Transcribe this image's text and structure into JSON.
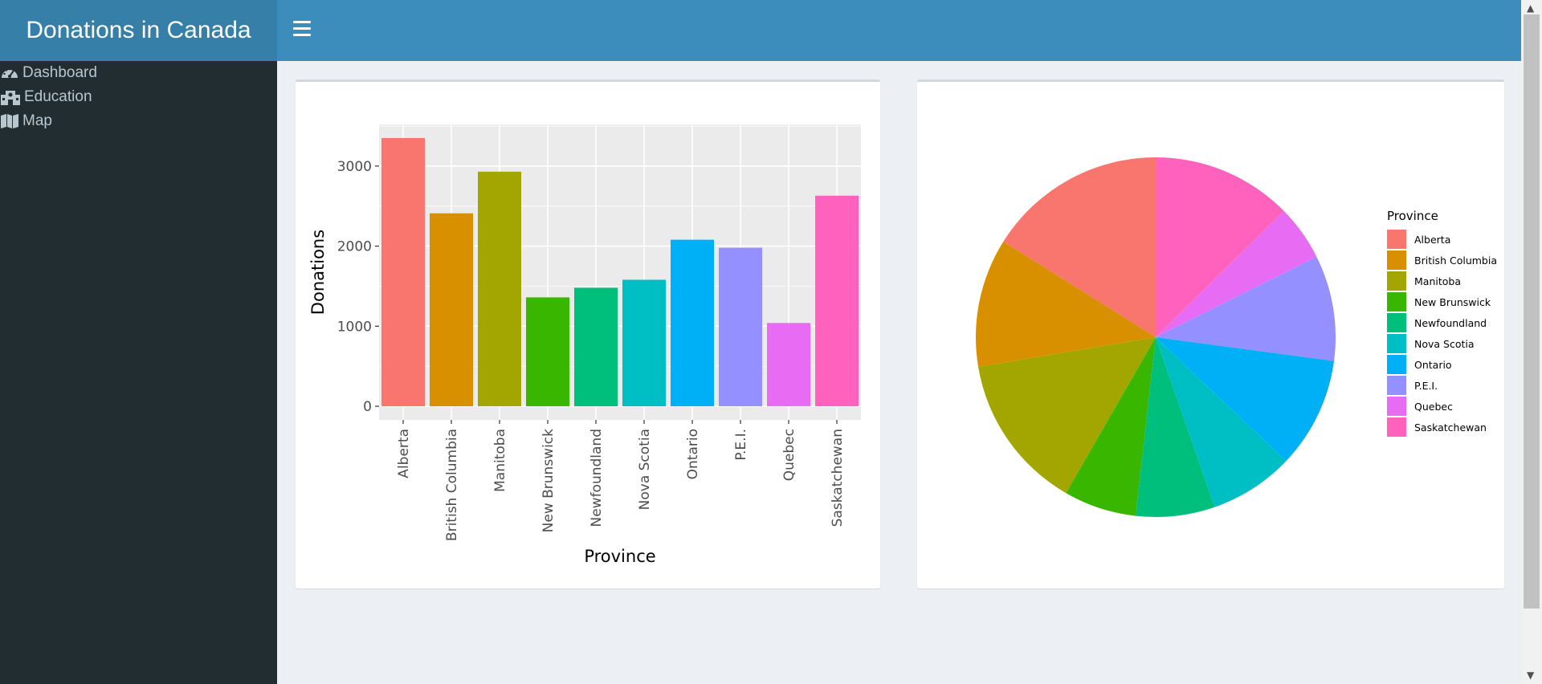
{
  "app": {
    "title": "Donations in Canada"
  },
  "sidebar": {
    "items": [
      {
        "label": "Dashboard",
        "icon": "dashboard-icon"
      },
      {
        "label": "Education",
        "icon": "school-icon"
      },
      {
        "label": "Map",
        "icon": "map-icon"
      }
    ]
  },
  "colors": {
    "header": "#3c8dbc",
    "logo": "#367fa9",
    "sidebar": "#222d32",
    "content_bg": "#ecf0f5",
    "panel_bg": "#ebebeb"
  },
  "chart_data": [
    {
      "type": "bar",
      "categories": [
        "Alberta",
        "British Columbia",
        "Manitoba",
        "New Brunswick",
        "Newfoundland",
        "Nova Scotia",
        "Ontario",
        "P.E.I.",
        "Quebec",
        "Saskatchewan"
      ],
      "values": [
        3350,
        2410,
        2930,
        1360,
        1480,
        1580,
        2080,
        1980,
        1040,
        2630
      ],
      "colors": [
        "#F8766D",
        "#D89000",
        "#A3A500",
        "#39B600",
        "#00BF7D",
        "#00BFC4",
        "#00B0F6",
        "#9590FF",
        "#E76BF3",
        "#FF62BC"
      ],
      "xlabel": "Province",
      "ylabel": "Donations",
      "yticks": [
        0,
        1000,
        2000,
        3000
      ],
      "ylim": [
        -170,
        3520
      ],
      "grid": true
    },
    {
      "type": "pie",
      "legend_title": "Province",
      "legend_position": "right",
      "labels": [
        "Alberta",
        "British Columbia",
        "Manitoba",
        "New Brunswick",
        "Newfoundland",
        "Nova Scotia",
        "Ontario",
        "P.E.I.",
        "Quebec",
        "Saskatchewan"
      ],
      "values": [
        3350,
        2410,
        2930,
        1360,
        1480,
        1580,
        2080,
        1980,
        1040,
        2630
      ],
      "colors": [
        "#F8766D",
        "#D89000",
        "#A3A500",
        "#39B600",
        "#00BF7D",
        "#00BFC4",
        "#00B0F6",
        "#9590FF",
        "#E76BF3",
        "#FF62BC"
      ]
    }
  ]
}
